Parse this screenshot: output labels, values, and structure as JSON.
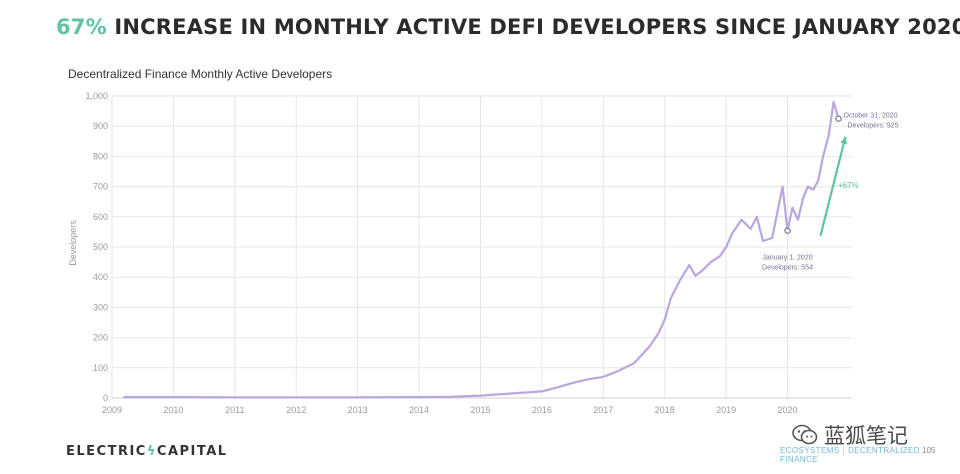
{
  "headline": {
    "percent": "67%",
    "text": " INCREASE IN MONTHLY ACTIVE DEFI DEVELOPERS SINCE JANUARY 2020"
  },
  "footer": {
    "logo_left": "ELECTRIC",
    "logo_right": "CAPITAL",
    "section_left": "ECOSYSTEMS",
    "section_right": "DECENTRALIZED FINANCE",
    "page_number": "105"
  },
  "watermark": "蓝狐笔记",
  "colors": {
    "series": "#b9a6de",
    "accent": "#5ec3a0",
    "grid": "#e6e6e6",
    "axis_text": "#9a9a9a",
    "annotation": "#7a6f9c"
  },
  "chart_data": {
    "type": "line",
    "title": "Decentralized Finance Monthly Active Developers",
    "xlabel": "",
    "ylabel": "Developers",
    "xlim": [
      2009,
      2021.05
    ],
    "ylim": [
      0,
      1000
    ],
    "x_ticks": [
      2009,
      2010,
      2011,
      2012,
      2013,
      2014,
      2015,
      2016,
      2017,
      2018,
      2019,
      2020
    ],
    "y_ticks": [
      0,
      100,
      200,
      300,
      400,
      500,
      600,
      700,
      800,
      900,
      1000
    ],
    "y_tick_labels": [
      "0",
      "100",
      "200",
      "300",
      "400",
      "500",
      "600",
      "700",
      "800",
      "900",
      "1,000"
    ],
    "grid": true,
    "series": [
      {
        "name": "Monthly Active Developers",
        "x": [
          2009.2,
          2010,
          2011,
          2012,
          2013,
          2014,
          2014.5,
          2015,
          2015.5,
          2016,
          2016.25,
          2016.5,
          2016.75,
          2017,
          2017.25,
          2017.5,
          2017.75,
          2017.9,
          2018,
          2018.1,
          2018.25,
          2018.4,
          2018.5,
          2018.6,
          2018.75,
          2018.9,
          2019,
          2019.1,
          2019.25,
          2019.4,
          2019.5,
          2019.6,
          2019.75,
          2019.85,
          2019.92,
          2020,
          2020.08,
          2020.17,
          2020.25,
          2020.33,
          2020.42,
          2020.5,
          2020.58,
          2020.67,
          2020.75,
          2020.83
        ],
        "y": [
          3,
          3,
          2,
          2,
          2,
          3,
          4,
          8,
          15,
          22,
          35,
          50,
          62,
          70,
          90,
          115,
          170,
          215,
          260,
          330,
          390,
          440,
          405,
          420,
          450,
          470,
          500,
          545,
          590,
          560,
          600,
          520,
          530,
          630,
          700,
          554,
          630,
          590,
          660,
          700,
          690,
          720,
          800,
          870,
          980,
          925
        ]
      }
    ],
    "annotations": [
      {
        "x": 2020.0,
        "y": 554,
        "line1": "January 1, 2020",
        "line2": "Developers: 554",
        "anchor": "below"
      },
      {
        "x": 2020.83,
        "y": 925,
        "line1": "October 31, 2020",
        "line2": "Developers: 925",
        "anchor": "right"
      }
    ],
    "growth_label": "+67%"
  }
}
